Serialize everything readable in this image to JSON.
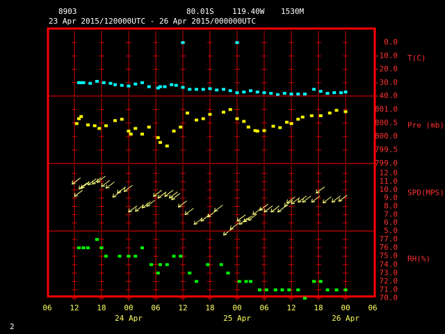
{
  "header": {
    "station": "8903",
    "latitude": "80.01S",
    "longitude": "119.40W",
    "elevation": "1530M",
    "period": "23 Apr 2015/120000UTC - 26 Apr 2015/000000UTC"
  },
  "footer": "2",
  "chart_data": [
    {
      "type": "scatter",
      "y_label": "T(C)",
      "color": "#00ffff",
      "grid": true,
      "x": [
        13,
        13.5,
        14,
        15.5,
        17,
        18.5,
        20,
        21,
        22.5,
        24,
        25.5,
        27,
        28.5,
        30.5,
        31,
        32,
        33.5,
        34.5,
        36,
        37.5,
        39,
        40.5,
        42,
        43.5,
        45,
        46.5,
        48,
        49.5,
        51,
        52.5,
        54,
        55.5,
        57,
        58.5,
        60,
        61.5,
        63,
        65,
        66.5,
        68,
        69.5,
        71,
        72,
        36,
        48
      ],
      "values": [
        -30,
        -30,
        -30,
        -30.5,
        -29,
        -30,
        -30.5,
        -31.5,
        -32,
        -32.5,
        -31,
        -30,
        -33,
        -34,
        -33,
        -33,
        -31.5,
        -32,
        -33.5,
        -35,
        -35,
        -35,
        -34.5,
        -35.5,
        -35,
        -36,
        -37.5,
        -37,
        -36,
        -37,
        -37.5,
        -38,
        -39,
        -38,
        -38.5,
        -38.5,
        -38.5,
        -35,
        -36.5,
        -38,
        -37.5,
        -37.5,
        -37,
        0,
        0
      ],
      "xlim": [
        6,
        78
      ],
      "xticks": [
        6,
        12,
        18,
        24,
        30,
        36,
        42,
        48,
        54,
        60,
        66,
        72,
        78
      ],
      "ylim": [
        -40,
        10
      ],
      "yticks": [
        {
          "value": 0,
          "label": "0.0"
        },
        {
          "value": -10,
          "label": "-10.0"
        },
        {
          "value": -20,
          "label": "-20.0"
        },
        {
          "value": -30,
          "label": "-30.0"
        },
        {
          "value": -40,
          "label": "-40.0"
        }
      ]
    },
    {
      "type": "scatter",
      "y_label": "Pre (mb)",
      "color": "#ffff00",
      "grid": true,
      "x": [
        12.5,
        13,
        13.5,
        15,
        16.5,
        17.5,
        19,
        21,
        22.5,
        24,
        24.5,
        25.5,
        27,
        28.5,
        30.5,
        31,
        32.5,
        34,
        35.5,
        37,
        39,
        40.5,
        42,
        45,
        46.5,
        48,
        49.5,
        50.5,
        52,
        52.5,
        54,
        56,
        57.5,
        59,
        60,
        61.5,
        62.5,
        64.5,
        66.5,
        68.5,
        70,
        72
      ],
      "values": [
        800.48,
        800.66,
        800.74,
        800.43,
        800.4,
        800.3,
        800.4,
        800.59,
        800.64,
        800.2,
        800.09,
        800.3,
        800.09,
        800.35,
        799.96,
        799.78,
        799.65,
        800.2,
        800.35,
        800.87,
        800.61,
        800.66,
        800.82,
        800.9,
        801,
        800.66,
        800.56,
        800.35,
        800.22,
        800.2,
        800.22,
        800.38,
        800.33,
        800.53,
        800.48,
        800.64,
        800.72,
        800.77,
        800.77,
        800.87,
        800.97,
        800.92
      ],
      "xlim": [
        6,
        78
      ],
      "xticks": [
        6,
        12,
        18,
        24,
        30,
        36,
        42,
        48,
        54,
        60,
        66,
        72,
        78
      ],
      "ylim": [
        799,
        801.5
      ],
      "yticks": [
        {
          "value": 801,
          "label": "801.0"
        },
        800.5,
        {
          "value": 800,
          "label": "800.0"
        },
        799.5,
        {
          "value": 799,
          "label": "799.0"
        }
      ]
    },
    {
      "type": "wind",
      "y_label": "SPD(MPS)",
      "color": "#ffff80",
      "grid": true,
      "x": [
        11.5,
        12,
        13,
        13.5,
        15,
        16,
        17,
        18,
        19,
        20.5,
        21.5,
        23,
        24,
        25.5,
        27,
        28,
        29.5,
        30.5,
        32,
        33,
        33.5,
        35,
        36.5,
        38.5,
        40,
        41.5,
        43,
        45,
        46.5,
        48,
        48.5,
        49.5,
        50.5,
        51.5,
        53,
        54,
        55.5,
        57,
        58.5,
        59,
        60,
        61.5,
        62.5,
        64.5,
        65.5,
        67,
        69,
        70.5
      ],
      "values": [
        10.7,
        9.2,
        10.1,
        10.2,
        10.6,
        10.7,
        10.9,
        10.4,
        10.2,
        9.1,
        9.6,
        9.8,
        7.3,
        7.4,
        7.8,
        8,
        9.2,
        9,
        9.2,
        9,
        8.8,
        7.9,
        7,
        5.8,
        6.2,
        6.7,
        7.4,
        4.5,
        5.2,
        6.2,
        5.8,
        6.1,
        6.3,
        7,
        7.5,
        7.3,
        7.3,
        7.3,
        8,
        8.4,
        8.3,
        8.5,
        8.5,
        8.5,
        9.6,
        8.4,
        8.5,
        8.6
      ],
      "xlim": [
        6,
        78
      ],
      "xticks": [
        6,
        12,
        18,
        24,
        30,
        36,
        42,
        48,
        54,
        60,
        66,
        72,
        78
      ],
      "ylim": [
        5,
        13.2
      ],
      "yticks": [
        {
          "value": 12,
          "label": "12.0"
        },
        {
          "value": 11,
          "label": "11.0"
        },
        {
          "value": 10,
          "label": "10.0"
        },
        {
          "value": 9,
          "label": "9.0"
        },
        {
          "value": 8,
          "label": "8.0"
        },
        {
          "value": 7,
          "label": "7.0"
        },
        {
          "value": 6,
          "label": "6.0"
        },
        {
          "value": 5,
          "label": "5.0"
        }
      ]
    },
    {
      "type": "scatter",
      "y_label": "RH(%)",
      "color": "#00ff00",
      "grid": true,
      "x": [
        13,
        14,
        15,
        17,
        18,
        19,
        22,
        24,
        25.5,
        27,
        29,
        30.5,
        31,
        32.5,
        34,
        35.5,
        37.5,
        39,
        41.5,
        44.5,
        46,
        48.5,
        50,
        51,
        53,
        54.5,
        56.5,
        58,
        59.5,
        61.5,
        63,
        65,
        66.5,
        68,
        70,
        72
      ],
      "values": [
        76,
        76,
        76,
        77,
        76,
        75,
        75,
        75,
        75,
        76,
        74,
        73,
        74,
        74,
        75,
        75,
        73,
        72,
        74,
        74,
        73,
        72,
        72,
        72,
        71,
        71,
        71,
        71,
        71,
        71,
        70,
        72,
        72,
        71,
        71,
        71
      ],
      "xlim": [
        6,
        78
      ],
      "xticks": [
        {
          "value": 6,
          "label": "06"
        },
        12,
        18,
        {
          "value": 24,
          "label": "00"
        },
        {
          "value": 30,
          "label": "06"
        },
        {
          "value": 36,
          "label": "12"
        },
        {
          "value": 42,
          "label": "18"
        },
        {
          "value": 48,
          "label": "00"
        },
        {
          "value": 54,
          "label": "06"
        },
        {
          "value": 60,
          "label": "12"
        },
        {
          "value": 66,
          "label": "18"
        },
        {
          "value": 72,
          "label": "00"
        },
        {
          "value": 78,
          "label": "06"
        }
      ],
      "date_ticks": [
        {
          "value": 24,
          "label": "24 Apr"
        },
        {
          "value": 48,
          "label": "25 Apr"
        },
        {
          "value": 72,
          "label": "26 Apr"
        }
      ],
      "ylim": [
        70.3,
        78
      ],
      "yticks": [
        {
          "value": 77,
          "label": "77.0"
        },
        {
          "value": 76,
          "label": "76.0"
        },
        {
          "value": 75,
          "label": "75.0"
        },
        {
          "value": 74,
          "label": "74.0"
        },
        {
          "value": 73,
          "label": "73.0"
        },
        {
          "value": 72,
          "label": "72.0"
        },
        {
          "value": 71,
          "label": "71.0"
        },
        {
          "value": 70,
          "label": "70.0"
        }
      ]
    }
  ]
}
